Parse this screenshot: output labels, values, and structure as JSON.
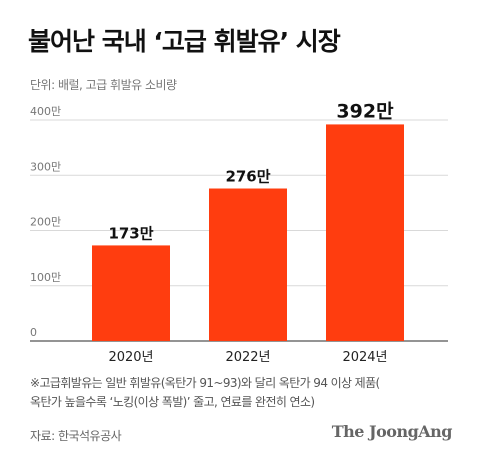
{
  "title": "불어난 국내 ‘고급 휘발유’ 시장",
  "subtitle": "단위: 배럴, 고급 휘발유 소비량",
  "note": {
    "line1": "※고급휘발유는 일반 휘발유(옥탄가 91~93)와 달리 옥탄가 94 이상 제품(",
    "line2": "옥탄가 높을수록 ‘노킹(이상 폭발)’ 줄고, 연료를 완전히 연소)"
  },
  "source": "자료: 한국석유공사",
  "logo": "The JoongAng",
  "colors": {
    "bar": "#ff3d0f",
    "grid": "#d9d9d9",
    "axis_text": "#777777"
  },
  "chart_data": {
    "type": "bar",
    "categories": [
      "2020년",
      "2022년",
      "2024년"
    ],
    "values": [
      173,
      276,
      392
    ],
    "value_labels": [
      "173만",
      "276만",
      "392만"
    ],
    "ylim": [
      0,
      400
    ],
    "yticks": [
      {
        "value": 0,
        "label": "0"
      },
      {
        "value": 100,
        "label": "100만"
      },
      {
        "value": 200,
        "label": "200만"
      },
      {
        "value": 300,
        "label": "300만"
      },
      {
        "value": 400,
        "label": "400만"
      }
    ],
    "grid": true
  }
}
